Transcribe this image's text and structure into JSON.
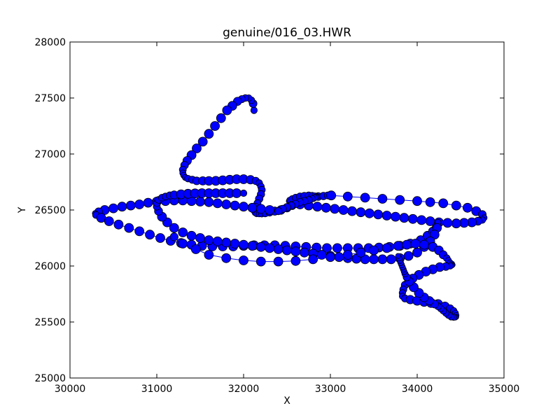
{
  "chart_data": {
    "type": "scatter",
    "title": "genuine/016_03.HWR",
    "xlabel": "X",
    "ylabel": "Y",
    "xlim": [
      30000,
      35000
    ],
    "ylim": [
      25000,
      28000
    ],
    "xticks": [
      "30000",
      "31000",
      "32000",
      "33000",
      "34000",
      "35000"
    ],
    "yticks": [
      "25000",
      "25500",
      "26000",
      "26500",
      "27000",
      "27500",
      "28000"
    ],
    "grid": false,
    "legend": "none",
    "colors": {
      "marker": "#0000ff",
      "line": "#0000ff",
      "edge": "#000000"
    },
    "series": [
      {
        "x": [
          32120,
          32110,
          32090,
          32060,
          32020,
          31980,
          31930,
          31870,
          31810,
          31740,
          31670,
          31600,
          31530,
          31460,
          31400,
          31350,
          31320,
          31300,
          31300,
          31310,
          31330,
          31360,
          31410,
          31460,
          31530,
          31600,
          31680,
          31760,
          31840,
          31920,
          32000,
          32080,
          32140,
          32180,
          32200,
          32210,
          32200,
          32180,
          32160,
          32140,
          32120,
          32120,
          32130,
          32150,
          32180,
          32210,
          32250,
          32300,
          32360,
          32430,
          32500,
          32560,
          32620,
          32680,
          32740,
          32800,
          32860,
          32920,
          32970,
          33010
        ],
        "y": [
          27390,
          27450,
          27480,
          27500,
          27500,
          27490,
          27470,
          27430,
          27390,
          27320,
          27250,
          27180,
          27110,
          27050,
          26990,
          26940,
          26900,
          26860,
          26830,
          26810,
          26790,
          26780,
          26770,
          26760,
          26760,
          26760,
          26760,
          26765,
          26770,
          26775,
          26775,
          26770,
          26760,
          26740,
          26710,
          26680,
          26640,
          26600,
          26560,
          26530,
          26510,
          26490,
          26475,
          26465,
          26465,
          26465,
          26470,
          26480,
          26490,
          26500,
          26520,
          26540,
          26560,
          26580,
          26600,
          26610,
          26620,
          26625,
          26630,
          26630
        ]
      },
      {
        "x": [
          33010,
          33200,
          33400,
          33600,
          33800,
          34000,
          34150,
          34300,
          34450,
          34580,
          34680,
          34750,
          34770,
          34750,
          34700,
          34630,
          34540,
          34450,
          34350,
          34250,
          34150,
          34050,
          33950,
          33850,
          33750,
          33650,
          33550,
          33450,
          33350,
          33250,
          33150,
          33050,
          32950,
          32850,
          32750,
          32650,
          32580,
          32540,
          32520,
          32530,
          32560,
          32600,
          32650,
          32700,
          32750,
          32790,
          32820,
          32840,
          32850,
          32840,
          32820,
          32790,
          32750,
          32700,
          32650,
          32600,
          32550,
          32500,
          32450,
          32400
        ],
        "y": [
          26630,
          26620,
          26610,
          26600,
          26590,
          26580,
          26570,
          26560,
          26540,
          26520,
          26490,
          26460,
          26430,
          26410,
          26400,
          26390,
          26385,
          26380,
          26385,
          26390,
          26400,
          26410,
          26420,
          26430,
          26440,
          26450,
          26460,
          26470,
          26480,
          26490,
          26500,
          26510,
          26520,
          26530,
          26540,
          26550,
          26560,
          26570,
          26580,
          26590,
          26600,
          26610,
          26620,
          26625,
          26630,
          26630,
          26628,
          26625,
          26620,
          26615,
          26610,
          26600,
          26590,
          26580,
          26570,
          26555,
          26540,
          26525,
          26510,
          26495
        ]
      },
      {
        "x": [
          32400,
          32300,
          32200,
          32100,
          32000,
          31900,
          31800,
          31700,
          31600,
          31500,
          31400,
          31300,
          31200,
          31100,
          31000,
          30900,
          30800,
          30700,
          30600,
          30500,
          30400,
          30330,
          30290,
          30300,
          30360,
          30450,
          30560,
          30680,
          30800,
          30920,
          31040,
          31160,
          31280,
          31400,
          31520,
          31640,
          31760,
          31880,
          32000,
          32120,
          32240,
          32360,
          32480,
          32600,
          32720,
          32840,
          32960,
          33080,
          33200,
          33320,
          33440,
          33560,
          33680,
          33800,
          33920,
          34040,
          34120,
          34180,
          34220,
          34240
        ],
        "y": [
          26490,
          26500,
          26510,
          26520,
          26530,
          26540,
          26550,
          26560,
          26570,
          26575,
          26580,
          26585,
          26585,
          26580,
          26575,
          26565,
          26550,
          26540,
          26530,
          26515,
          26500,
          26485,
          26470,
          26455,
          26430,
          26400,
          26370,
          26340,
          26310,
          26280,
          26250,
          26225,
          26205,
          26190,
          26180,
          26175,
          26175,
          26175,
          26180,
          26185,
          26185,
          26185,
          26180,
          26175,
          26170,
          26165,
          26160,
          26160,
          26160,
          26160,
          26160,
          26165,
          26170,
          26180,
          26200,
          26230,
          26270,
          26310,
          26350,
          26390
        ]
      },
      {
        "x": [
          34240,
          34230,
          34200,
          34150,
          34080,
          34000,
          33900,
          33800,
          33700,
          33600,
          33500,
          33400,
          33300,
          33200,
          33100,
          33000,
          32900,
          32800,
          32700,
          32600,
          32500,
          32400,
          32300,
          32200,
          32100,
          32000,
          31900,
          31800,
          31700,
          31600,
          31500,
          31400,
          31300,
          31200,
          31120,
          31060,
          31020,
          31000,
          31000,
          31020,
          31060,
          31100,
          31150,
          31200,
          31280,
          31360,
          31440,
          31520,
          31600,
          31680,
          31760,
          31840,
          31920,
          32000
        ],
        "y": [
          26390,
          26340,
          26280,
          26220,
          26170,
          26120,
          26090,
          26070,
          26060,
          26060,
          26060,
          26060,
          26065,
          26070,
          26080,
          26090,
          26100,
          26110,
          26120,
          26130,
          26140,
          26150,
          26160,
          26170,
          26180,
          26190,
          26200,
          26210,
          26220,
          26230,
          26250,
          26270,
          26300,
          26340,
          26390,
          26440,
          26490,
          26530,
          26560,
          26590,
          26610,
          26620,
          26630,
          26635,
          26640,
          26645,
          26648,
          26650,
          26650,
          26650,
          26650,
          26650,
          26650,
          26650
        ]
      },
      {
        "x": [
          31200,
          31300,
          31450,
          31600,
          31800,
          32000,
          32200,
          32400,
          32600,
          32800,
          33000,
          33200,
          33350,
          33500,
          33650,
          33780,
          33880,
          33980,
          34080,
          34180,
          34250,
          34300,
          34340,
          34360,
          34380,
          34400,
          34410,
          34400,
          34380,
          34330,
          34260,
          34180,
          34100,
          34020,
          33950,
          33900,
          33860,
          33840,
          33830,
          33830,
          33860,
          33920,
          34000,
          34080,
          34160,
          34240,
          34320,
          34380,
          34420,
          34440,
          34450,
          34450,
          34440,
          34420,
          34390,
          34360,
          34330,
          34300,
          34270,
          34240,
          34200,
          34140,
          34080,
          34020,
          33960,
          33910,
          33880,
          33860,
          33850,
          33840,
          33830,
          33820,
          33810,
          33800,
          33790,
          33780
        ],
        "y": [
          26260,
          26200,
          26150,
          26100,
          26070,
          26050,
          26040,
          26040,
          26045,
          26060,
          26080,
          26100,
          26120,
          26140,
          26160,
          26180,
          26190,
          26200,
          26190,
          26170,
          26140,
          26100,
          26070,
          26050,
          26030,
          26020,
          26010,
          26005,
          26000,
          25995,
          25990,
          25970,
          25950,
          25920,
          25890,
          25860,
          25830,
          25790,
          25760,
          25730,
          25710,
          25700,
          25690,
          25680,
          25670,
          25660,
          25640,
          25620,
          25600,
          25580,
          25560,
          25545,
          25540,
          25540,
          25545,
          25560,
          25580,
          25600,
          25620,
          25640,
          25660,
          25690,
          25720,
          25760,
          25810,
          25860,
          25900,
          25930,
          25950,
          25970,
          25990,
          26010,
          26030,
          26050,
          26070,
          26090
        ]
      }
    ]
  }
}
